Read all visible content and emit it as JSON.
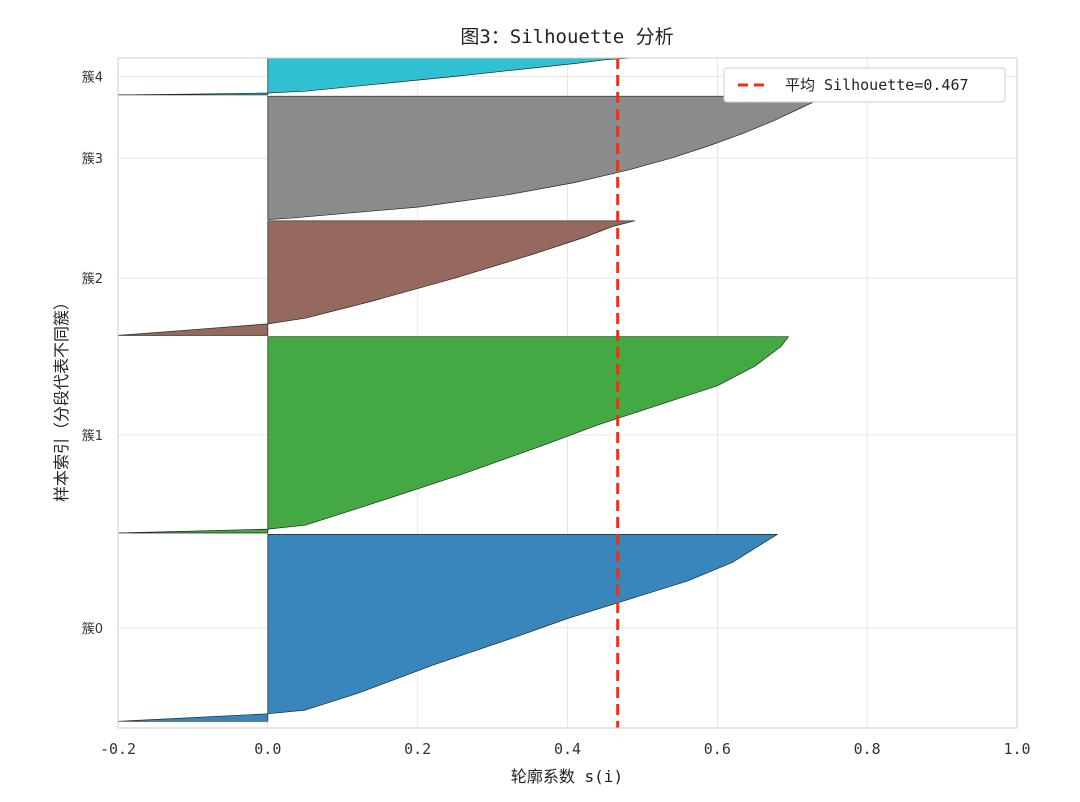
{
  "chart_data": {
    "type": "area",
    "title": "图3：Silhouette 分析",
    "xlabel": "轮廓系数 s(i)",
    "ylabel": "样本索引（分段代表不同簇）",
    "xlim": [
      -0.2,
      1.0
    ],
    "xticks": [
      -0.2,
      0.0,
      0.2,
      0.4,
      0.6,
      0.8,
      1.0
    ],
    "xtick_labels": [
      "-0.2",
      "0.0",
      "0.2",
      "0.4",
      "0.6",
      "0.8",
      "1.0"
    ],
    "ylim": [
      0,
      1000
    ],
    "grid": true,
    "legend_placement": "top-right",
    "average": {
      "value": 0.467,
      "label": "平均 Silhouette=0.467",
      "color": "#ff2a0a",
      "style": "dashed"
    },
    "clusters": [
      {
        "name": "簇0",
        "color": "#3584bb",
        "y_start": 10,
        "y_end": 289,
        "profile": [
          [
            0,
            -0.2
          ],
          [
            0.02,
            -0.1
          ],
          [
            0.04,
            0.0
          ],
          [
            0.06,
            0.05
          ],
          [
            0.15,
            0.12
          ],
          [
            0.3,
            0.22
          ],
          [
            0.45,
            0.33
          ],
          [
            0.55,
            0.4
          ],
          [
            0.65,
            0.48
          ],
          [
            0.75,
            0.56
          ],
          [
            0.85,
            0.62
          ],
          [
            0.95,
            0.66
          ],
          [
            1.0,
            0.68
          ]
        ]
      },
      {
        "name": "簇1",
        "color": "#40a73f",
        "y_start": 291,
        "y_end": 584,
        "profile": [
          [
            0,
            -0.2
          ],
          [
            0.01,
            -0.1
          ],
          [
            0.02,
            0.0
          ],
          [
            0.04,
            0.05
          ],
          [
            0.15,
            0.14
          ],
          [
            0.3,
            0.26
          ],
          [
            0.45,
            0.37
          ],
          [
            0.55,
            0.44
          ],
          [
            0.65,
            0.52
          ],
          [
            0.75,
            0.6
          ],
          [
            0.85,
            0.65
          ],
          [
            0.95,
            0.685
          ],
          [
            1.0,
            0.695
          ]
        ]
      },
      {
        "name": "簇2",
        "color": "#93665a",
        "y_start": 586,
        "y_end": 757,
        "profile": [
          [
            0,
            -0.2
          ],
          [
            0.05,
            -0.1
          ],
          [
            0.1,
            0.0
          ],
          [
            0.15,
            0.05
          ],
          [
            0.3,
            0.14
          ],
          [
            0.5,
            0.25
          ],
          [
            0.7,
            0.35
          ],
          [
            0.85,
            0.42
          ],
          [
            0.95,
            0.46
          ],
          [
            1.0,
            0.49
          ]
        ]
      },
      {
        "name": "簇3",
        "color": "#898989",
        "y_start": 759,
        "y_end": 943,
        "profile": [
          [
            0,
            0.0
          ],
          [
            0.01,
            0.03
          ],
          [
            0.1,
            0.2
          ],
          [
            0.2,
            0.32
          ],
          [
            0.3,
            0.41
          ],
          [
            0.4,
            0.48
          ],
          [
            0.5,
            0.54
          ],
          [
            0.6,
            0.59
          ],
          [
            0.7,
            0.635
          ],
          [
            0.8,
            0.675
          ],
          [
            0.9,
            0.71
          ],
          [
            1.0,
            0.745
          ]
        ]
      },
      {
        "name": "簇4",
        "color": "#2dbfd0",
        "y_start": 945,
        "y_end": 1000,
        "profile": [
          [
            0,
            -0.2
          ],
          [
            0.02,
            -0.1
          ],
          [
            0.05,
            0.0
          ],
          [
            0.1,
            0.05
          ],
          [
            0.3,
            0.15
          ],
          [
            0.5,
            0.25
          ],
          [
            0.7,
            0.34
          ],
          [
            0.85,
            0.41
          ],
          [
            0.95,
            0.45
          ],
          [
            1.0,
            0.485
          ]
        ]
      }
    ]
  }
}
